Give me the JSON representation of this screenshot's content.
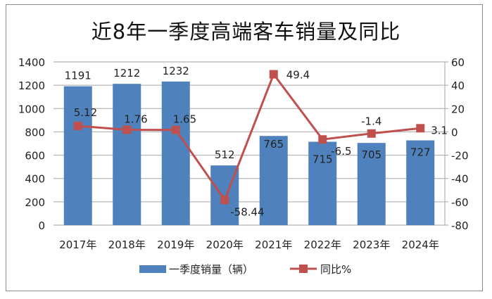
{
  "chart_data": {
    "type": "bar+line",
    "title": "近8年一季度高端客车销量及同比",
    "categories": [
      "2017年",
      "2018年",
      "2019年",
      "2020年",
      "2021年",
      "2022年",
      "2023年",
      "2024年"
    ],
    "series": [
      {
        "name": "一季度销量（辆）",
        "type": "bar",
        "axis": "left",
        "color": "#4f81bd",
        "values": [
          1191,
          1212,
          1232,
          512,
          765,
          715,
          705,
          727
        ],
        "labels": [
          "1191",
          "1212",
          "1232",
          "512",
          "765",
          "715",
          "705",
          "727"
        ]
      },
      {
        "name": "同比%",
        "type": "line",
        "axis": "right",
        "color": "#c0504d",
        "values": [
          5.12,
          1.76,
          1.65,
          -58.44,
          49.4,
          -6.5,
          -1.4,
          3.1
        ],
        "labels": [
          "5.12",
          "1.76",
          "1.65",
          "-58.44",
          "49.4",
          "-6.5",
          "-1.4",
          "3.1"
        ]
      }
    ],
    "left_axis": {
      "ylim": [
        0,
        1400
      ],
      "ticks": [
        "0",
        "200",
        "400",
        "600",
        "800",
        "1000",
        "1200",
        "1400"
      ]
    },
    "right_axis": {
      "ylim": [
        -80,
        60
      ],
      "ticks": [
        "-80",
        "-60",
        "-40",
        "-20",
        "0",
        "20",
        "40",
        "60"
      ]
    },
    "grid": true,
    "legend": "bottom"
  }
}
